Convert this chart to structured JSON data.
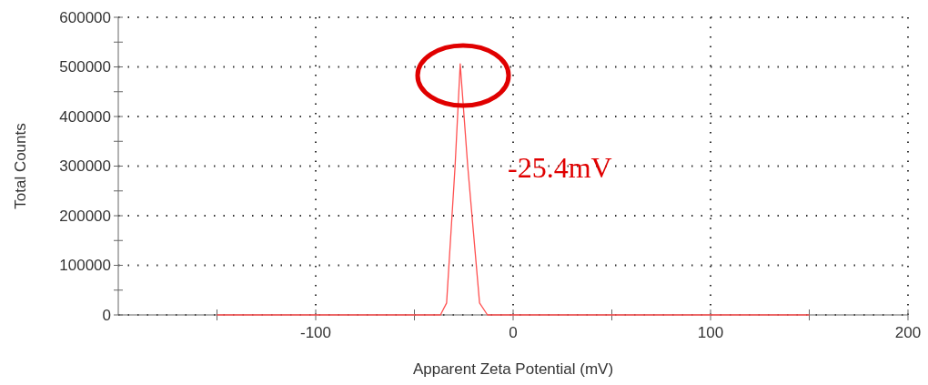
{
  "chart_data": {
    "type": "line",
    "xlabel": "Apparent Zeta Potential (mV)",
    "ylabel": "Total Counts",
    "x": [
      -150,
      -40,
      -36.8,
      -33.7,
      -29.4,
      -26.8,
      -23,
      -17,
      -13,
      -10,
      150
    ],
    "series": [
      {
        "color": "#ff5050",
        "values": [
          0,
          0,
          0,
          24000,
          300000,
          506000,
          300000,
          24000,
          0,
          0,
          0
        ]
      }
    ],
    "xlim": [
      -200,
      200
    ],
    "xticks": [
      {
        "value": -150,
        "label": null
      },
      -100,
      {
        "value": -50,
        "label": null
      },
      0,
      {
        "value": 50,
        "label": null
      },
      100,
      {
        "value": 150,
        "label": null
      },
      200
    ],
    "ylim": [
      0,
      600000
    ],
    "yticks": [
      0,
      {
        "value": 50000,
        "label": null
      },
      100000,
      {
        "value": 150000,
        "label": null
      },
      200000,
      {
        "value": 250000,
        "label": null
      },
      300000,
      {
        "value": 350000,
        "label": null
      },
      400000,
      {
        "value": 450000,
        "label": null
      },
      500000,
      {
        "value": 550000,
        "label": null
      },
      600000
    ],
    "grid": true,
    "marker": "none",
    "line_style": "solid",
    "annotations": [
      "-25.4mV"
    ]
  }
}
